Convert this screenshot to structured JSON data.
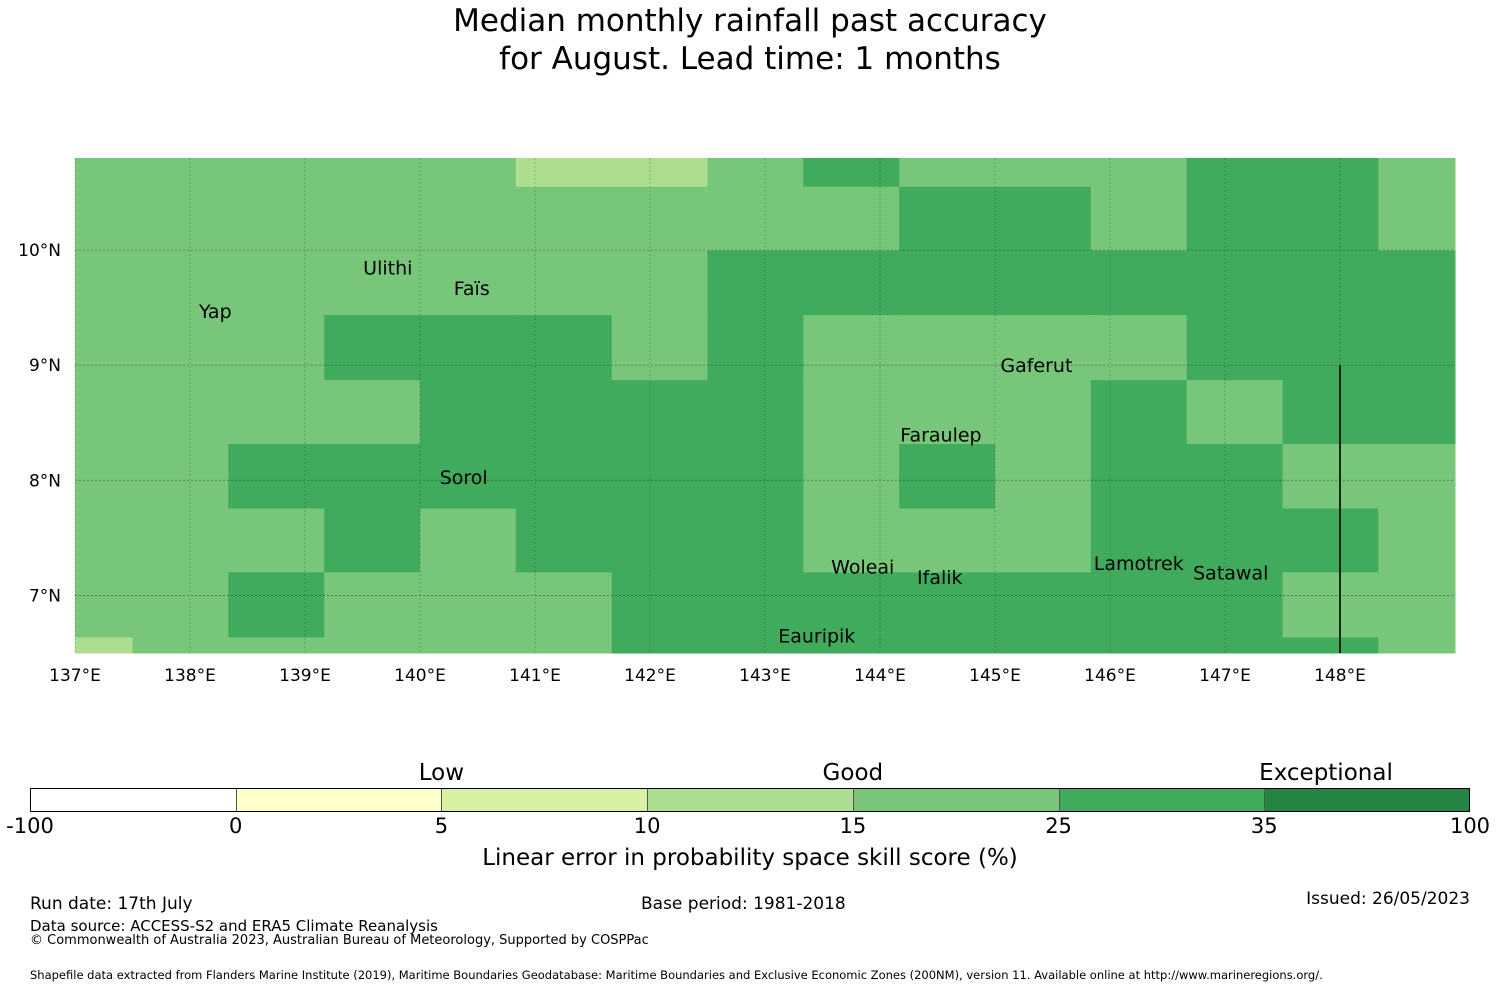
{
  "title_line1": "Median monthly rainfall past accuracy",
  "title_line2": "for August. Lead time: 1 months",
  "map": {
    "lon_range": [
      137.0,
      149.0
    ],
    "lat_range": [
      6.5,
      10.8
    ],
    "lat_ticks": [
      {
        "value": 10,
        "label": "10°N"
      },
      {
        "value": 9,
        "label": "9°N"
      },
      {
        "value": 8,
        "label": "8°N"
      },
      {
        "value": 7,
        "label": "7°N"
      }
    ],
    "lon_ticks": [
      {
        "value": 137,
        "label": "137°E"
      },
      {
        "value": 138,
        "label": "138°E"
      },
      {
        "value": 139,
        "label": "139°E"
      },
      {
        "value": 140,
        "label": "140°E"
      },
      {
        "value": 141,
        "label": "141°E"
      },
      {
        "value": 142,
        "label": "142°E"
      },
      {
        "value": 143,
        "label": "143°E"
      },
      {
        "value": 144,
        "label": "144°E"
      },
      {
        "value": 145,
        "label": "145°E"
      },
      {
        "value": 146,
        "label": "146°E"
      },
      {
        "value": 147,
        "label": "147°E"
      },
      {
        "value": 148,
        "label": "148°E"
      }
    ],
    "grid_lon_edges": [
      137.0,
      137.5,
      138.333,
      139.167,
      140.0,
      140.833,
      141.667,
      142.5,
      143.333,
      144.167,
      145.0,
      145.833,
      146.667,
      147.5,
      148.333,
      149.0
    ],
    "grid_lat_edges": [
      10.8,
      10.55,
      9.995,
      9.435,
      8.87,
      8.315,
      7.755,
      7.2,
      6.635,
      6.5
    ],
    "grid_classes_note_keys": [
      "1",
      "2",
      "3"
    ],
    "grid": [
      [
        2,
        2,
        2,
        2,
        2,
        1,
        1,
        2,
        3,
        2,
        2,
        2,
        3,
        3,
        2
      ],
      [
        2,
        2,
        2,
        2,
        2,
        2,
        2,
        2,
        2,
        3,
        3,
        2,
        3,
        3,
        2
      ],
      [
        2,
        2,
        2,
        2,
        2,
        2,
        2,
        3,
        3,
        3,
        3,
        3,
        3,
        3,
        3
      ],
      [
        2,
        2,
        2,
        3,
        3,
        3,
        2,
        3,
        2,
        2,
        2,
        2,
        3,
        3,
        3
      ],
      [
        2,
        2,
        2,
        2,
        3,
        3,
        3,
        3,
        2,
        2,
        2,
        3,
        2,
        3,
        3
      ],
      [
        2,
        2,
        3,
        3,
        3,
        3,
        3,
        3,
        2,
        3,
        2,
        3,
        3,
        2,
        2
      ],
      [
        2,
        2,
        2,
        3,
        2,
        3,
        3,
        3,
        2,
        2,
        2,
        3,
        3,
        3,
        2
      ],
      [
        2,
        2,
        3,
        2,
        2,
        2,
        3,
        3,
        3,
        3,
        3,
        3,
        3,
        2,
        2
      ],
      [
        1,
        2,
        2,
        2,
        2,
        2,
        3,
        3,
        3,
        3,
        3,
        3,
        3,
        3,
        2
      ]
    ],
    "class_colors": {
      "1": "#addd8e",
      "2": "#78c679",
      "3": "#41ab5d"
    },
    "eez_line": {
      "lon": 148.0,
      "lat_from": 6.5,
      "lat_to": 9.0
    },
    "places": [
      {
        "name": "Ulithi",
        "lon": 139.72,
        "lat": 9.85
      },
      {
        "name": "Faïs",
        "lon": 140.45,
        "lat": 9.67
      },
      {
        "name": "Yap",
        "lon": 138.22,
        "lat": 9.47
      },
      {
        "name": "Gaferut",
        "lon": 145.36,
        "lat": 9.0
      },
      {
        "name": "Faraulep",
        "lon": 144.53,
        "lat": 8.4
      },
      {
        "name": "Sorol",
        "lon": 140.38,
        "lat": 8.03
      },
      {
        "name": "Woleai",
        "lon": 143.85,
        "lat": 7.25
      },
      {
        "name": "Ifalik",
        "lon": 144.52,
        "lat": 7.16
      },
      {
        "name": "Lamotrek",
        "lon": 146.25,
        "lat": 7.28
      },
      {
        "name": "Satawal",
        "lon": 147.05,
        "lat": 7.2
      },
      {
        "name": "Eauripik",
        "lon": 143.45,
        "lat": 6.65
      }
    ]
  },
  "legend": {
    "words": [
      {
        "label": "Low",
        "at": 2
      },
      {
        "label": "Good",
        "at": 4
      },
      {
        "label": "Exceptional",
        "at": 6.3
      }
    ],
    "colors": [
      "#ffffff",
      "#ffffcc",
      "#d9f0a3",
      "#addd8e",
      "#78c679",
      "#41ab5d",
      "#238443"
    ],
    "ticks": [
      "-100",
      "0",
      "5",
      "10",
      "15",
      "25",
      "35",
      "100"
    ],
    "axis_label": "Linear error in probability space skill score (%)"
  },
  "footer": {
    "run_date": "Run date: 17th July",
    "base_period": "Base period: 1981-2018",
    "issued": "Issued: 26/05/2023",
    "data_source": "Data source: ACCESS-S2 and ERA5 Climate Reanalysis",
    "copyright": "© Commonwealth of Australia 2023, Australian Bureau of Meteorology, Supported by COSPPac",
    "shapefile": "Shapefile data extracted from Flanders Marine Institute (2019), Maritime Boundaries Geodatabase: Maritime Boundaries and Exclusive Economic Zones (200NM), version 11. Available online at http://www.marineregions.org/."
  }
}
